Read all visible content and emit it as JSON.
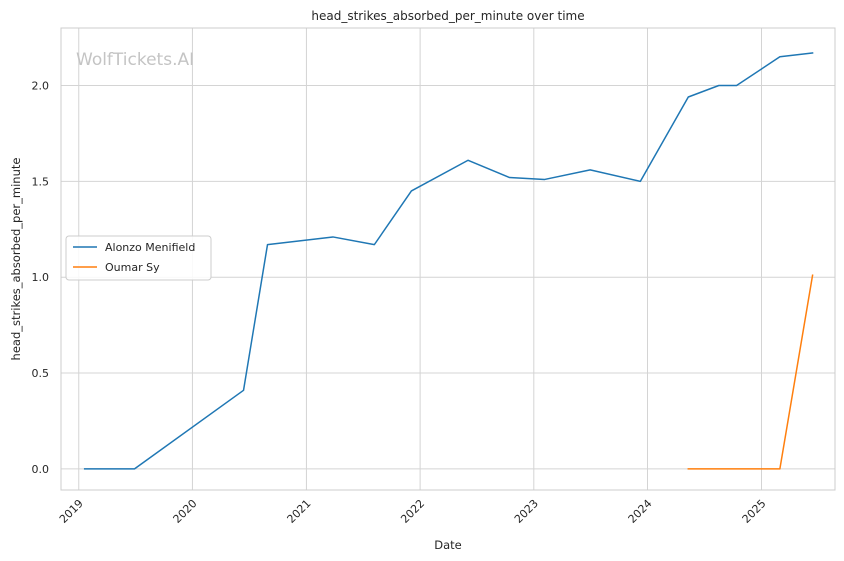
{
  "chart_data": {
    "type": "line",
    "title": "head_strikes_absorbed_per_minute over time",
    "xlabel": "Date",
    "ylabel": "head_strikes_absorbed_per_minute",
    "watermark": "WolfTickets.AI",
    "grid": true,
    "legend_position": "center-left",
    "xlim": [
      "2018-11-05",
      "2025-08-25"
    ],
    "ylim": [
      -0.11,
      2.3
    ],
    "x_ticks": [
      {
        "label": "2019",
        "date": "2019-01-01"
      },
      {
        "label": "2020",
        "date": "2020-01-01"
      },
      {
        "label": "2021",
        "date": "2021-01-01"
      },
      {
        "label": "2022",
        "date": "2022-01-01"
      },
      {
        "label": "2023",
        "date": "2023-01-01"
      },
      {
        "label": "2024",
        "date": "2024-01-01"
      },
      {
        "label": "2025",
        "date": "2025-01-01"
      }
    ],
    "y_ticks": [
      {
        "label": "0.0",
        "value": 0.0
      },
      {
        "label": "0.5",
        "value": 0.5
      },
      {
        "label": "1.0",
        "value": 1.0
      },
      {
        "label": "1.5",
        "value": 1.5
      },
      {
        "label": "2.0",
        "value": 2.0
      }
    ],
    "series": [
      {
        "name": "Alonzo Menifield",
        "color": "#1f77b4",
        "points": [
          {
            "x": "2019-01-20",
            "y": 0.0
          },
          {
            "x": "2019-06-29",
            "y": 0.0
          },
          {
            "x": "2020-06-13",
            "y": 0.41
          },
          {
            "x": "2020-08-29",
            "y": 1.17
          },
          {
            "x": "2021-03-27",
            "y": 1.21
          },
          {
            "x": "2021-08-07",
            "y": 1.17
          },
          {
            "x": "2021-12-04",
            "y": 1.45
          },
          {
            "x": "2022-06-04",
            "y": 1.61
          },
          {
            "x": "2022-10-15",
            "y": 1.52
          },
          {
            "x": "2023-02-05",
            "y": 1.51
          },
          {
            "x": "2023-07-01",
            "y": 1.56
          },
          {
            "x": "2023-12-09",
            "y": 1.5
          },
          {
            "x": "2024-05-11",
            "y": 1.94
          },
          {
            "x": "2024-08-17",
            "y": 2.0
          },
          {
            "x": "2024-10-13",
            "y": 2.0
          },
          {
            "x": "2025-03-01",
            "y": 2.15
          },
          {
            "x": "2025-06-14",
            "y": 2.17
          }
        ]
      },
      {
        "name": "Oumar Sy",
        "color": "#ff7f0e",
        "points": [
          {
            "x": "2024-05-11",
            "y": 0.0
          },
          {
            "x": "2024-08-24",
            "y": 0.0
          },
          {
            "x": "2025-03-01",
            "y": 0.0
          },
          {
            "x": "2025-06-14",
            "y": 1.01
          }
        ]
      }
    ]
  }
}
